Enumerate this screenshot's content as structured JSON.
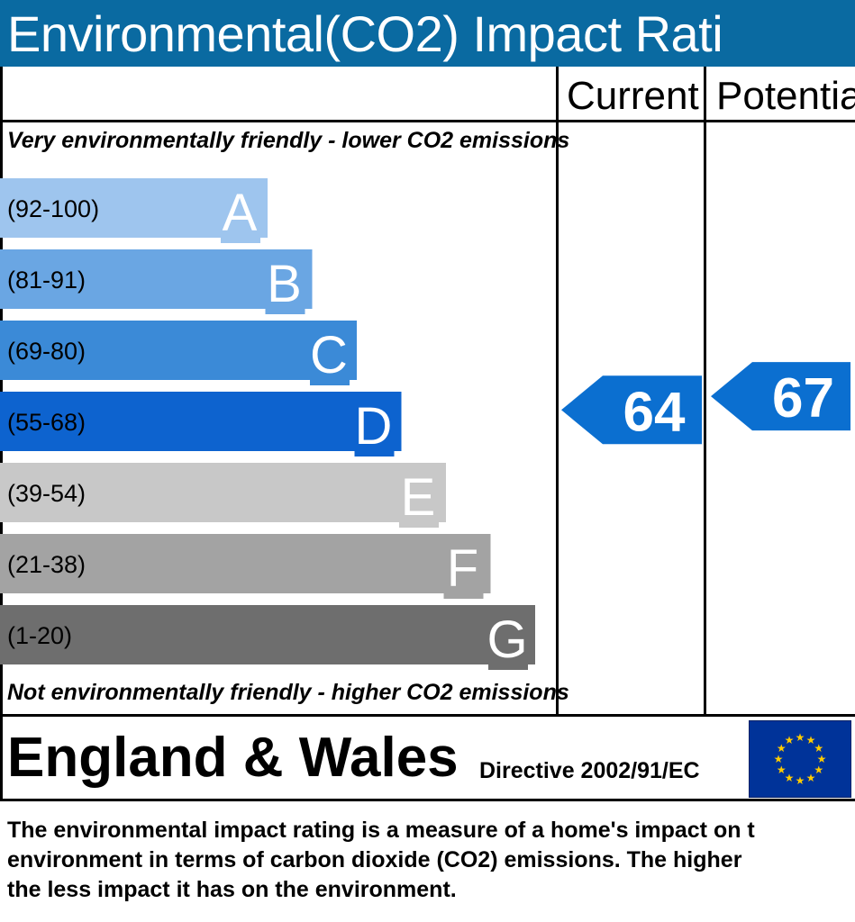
{
  "title": "Environmental(CO2) Impact Rati",
  "columns": {
    "current": "Current",
    "potential": "Potentia"
  },
  "captions": {
    "top": "Very environmentally friendly - lower CO2 emissions",
    "bottom": "Not environmentally friendly - higher CO2 emissions"
  },
  "footer": {
    "region": "England & Wales",
    "directive": "Directive 2002/91/EC"
  },
  "description": [
    "The environmental impact rating is a measure of a home's impact on t",
    "environment in terms of carbon dioxide (CO2) emissions. The higher",
    "the less impact it has on the environment."
  ],
  "colors": {
    "title_bar": "#0a6aa1",
    "arrow": "#0b6fd0",
    "A": "#9ec5ee",
    "B": "#6aa6e3",
    "C": "#3b8ad7",
    "D": "#0d63cf",
    "E": "#c8c8c8",
    "F": "#a3a3a3",
    "G": "#6e6e6e"
  },
  "chart_data": {
    "type": "bar",
    "categories": [
      "A",
      "B",
      "C",
      "D",
      "E",
      "F",
      "G"
    ],
    "ranges": [
      "(92-100)",
      "(81-91)",
      "(69-80)",
      "(55-68)",
      "(39-54)",
      "(21-38)",
      "(1-20)"
    ],
    "current": {
      "value": 64,
      "band": "D"
    },
    "potential": {
      "value": 67,
      "band": "D"
    }
  }
}
